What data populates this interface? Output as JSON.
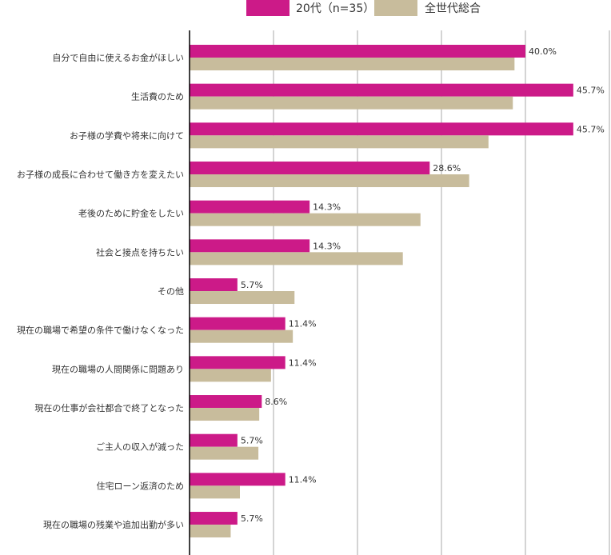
{
  "chart_data": {
    "type": "bar",
    "orientation": "horizontal",
    "title": "",
    "xlabel": "",
    "ylabel": "",
    "xlim": [
      0,
      50
    ],
    "grid": true,
    "legend_position": "top-center",
    "categories": [
      "自分で自由に使えるお金がほしい",
      "生活費のため",
      "お子様の学費や将来に向けて",
      "お子様の成長に合わせて働き方を変えたい",
      "老後のために貯金をしたい",
      "社会と接点を持ちたい",
      "その他",
      "現在の職場で希望の条件で働けなくなった",
      "現在の職場の人間関係に問題あり",
      "現在の仕事が会社都合で終了となった",
      "ご主人の収入が減った",
      "住宅ローン返済のため",
      "現在の職場の残業や追加出勤が多い"
    ],
    "series": [
      {
        "name": "20代（n=35）",
        "color": "#CC1A88",
        "values": [
          40.0,
          45.7,
          45.7,
          28.6,
          14.3,
          14.3,
          5.7,
          11.4,
          11.4,
          8.6,
          5.7,
          11.4,
          5.7
        ],
        "data_labels": [
          "40.0%",
          "45.7%",
          "45.7%",
          "28.6%",
          "14.3%",
          "14.3%",
          "5.7%",
          "11.4%",
          "11.4%",
          "8.6%",
          "5.7%",
          "11.4%",
          "5.7%"
        ]
      },
      {
        "name": "全世代総合",
        "color": "#C8BC9C",
        "values": [
          38.7,
          38.5,
          35.6,
          33.3,
          27.5,
          25.4,
          12.5,
          12.3,
          9.7,
          8.3,
          8.2,
          6.0,
          4.9
        ]
      }
    ]
  }
}
